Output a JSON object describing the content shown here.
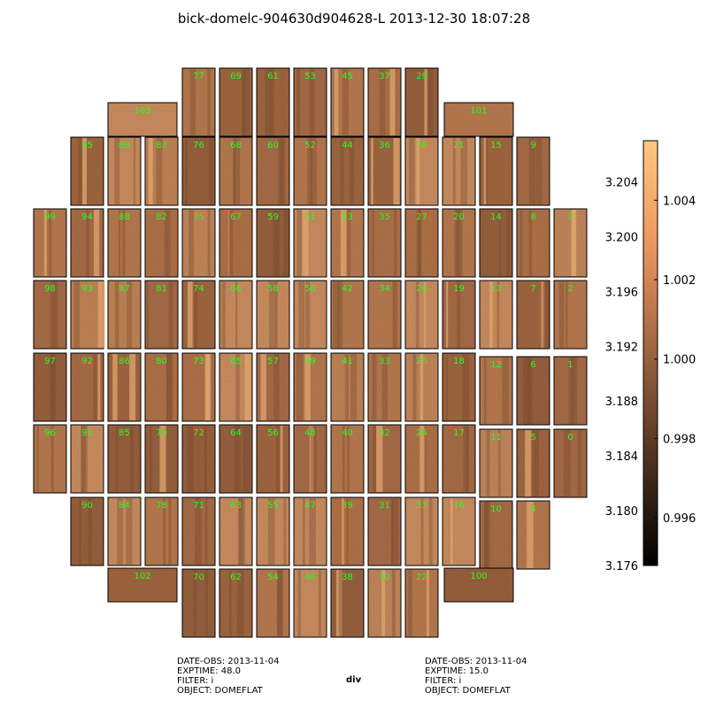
{
  "chart_data": {
    "type": "heatmap",
    "title": "bick-domelc-904630d904628-L 2013-12-30 18:07:28",
    "colormap": "copper",
    "label_color": "#22ff22",
    "chips": [
      {
        "id": "77"
      },
      {
        "id": "69"
      },
      {
        "id": "61"
      },
      {
        "id": "53"
      },
      {
        "id": "45"
      },
      {
        "id": "37"
      },
      {
        "id": "29"
      },
      {
        "id": "103"
      },
      {
        "id": "101"
      },
      {
        "id": "95"
      },
      {
        "id": "89"
      },
      {
        "id": "83"
      },
      {
        "id": "76"
      },
      {
        "id": "68"
      },
      {
        "id": "60"
      },
      {
        "id": "52"
      },
      {
        "id": "44"
      },
      {
        "id": "36"
      },
      {
        "id": "28"
      },
      {
        "id": "21"
      },
      {
        "id": "15"
      },
      {
        "id": "9"
      },
      {
        "id": "99"
      },
      {
        "id": "94"
      },
      {
        "id": "88"
      },
      {
        "id": "82"
      },
      {
        "id": "75"
      },
      {
        "id": "67"
      },
      {
        "id": "59"
      },
      {
        "id": "51"
      },
      {
        "id": "43"
      },
      {
        "id": "35"
      },
      {
        "id": "27"
      },
      {
        "id": "20"
      },
      {
        "id": "14"
      },
      {
        "id": "8"
      },
      {
        "id": "3"
      },
      {
        "id": "98"
      },
      {
        "id": "93"
      },
      {
        "id": "87"
      },
      {
        "id": "81"
      },
      {
        "id": "74"
      },
      {
        "id": "66"
      },
      {
        "id": "58"
      },
      {
        "id": "50"
      },
      {
        "id": "42"
      },
      {
        "id": "34"
      },
      {
        "id": "26"
      },
      {
        "id": "19"
      },
      {
        "id": "13"
      },
      {
        "id": "7"
      },
      {
        "id": "2"
      },
      {
        "id": "97"
      },
      {
        "id": "92"
      },
      {
        "id": "86"
      },
      {
        "id": "80"
      },
      {
        "id": "73"
      },
      {
        "id": "65"
      },
      {
        "id": "57"
      },
      {
        "id": "49"
      },
      {
        "id": "41"
      },
      {
        "id": "33"
      },
      {
        "id": "25"
      },
      {
        "id": "18"
      },
      {
        "id": "12"
      },
      {
        "id": "6"
      },
      {
        "id": "1"
      },
      {
        "id": "96"
      },
      {
        "id": "91"
      },
      {
        "id": "85"
      },
      {
        "id": "79"
      },
      {
        "id": "72"
      },
      {
        "id": "64"
      },
      {
        "id": "56"
      },
      {
        "id": "48"
      },
      {
        "id": "40"
      },
      {
        "id": "32"
      },
      {
        "id": "24"
      },
      {
        "id": "17"
      },
      {
        "id": "11"
      },
      {
        "id": "5"
      },
      {
        "id": "0"
      },
      {
        "id": "90"
      },
      {
        "id": "84"
      },
      {
        "id": "78"
      },
      {
        "id": "71"
      },
      {
        "id": "63"
      },
      {
        "id": "55"
      },
      {
        "id": "47"
      },
      {
        "id": "39"
      },
      {
        "id": "31"
      },
      {
        "id": "23"
      },
      {
        "id": "16"
      },
      {
        "id": "10"
      },
      {
        "id": "4"
      },
      {
        "id": "102"
      },
      {
        "id": "100"
      },
      {
        "id": "70"
      },
      {
        "id": "62"
      },
      {
        "id": "54"
      },
      {
        "id": "46"
      },
      {
        "id": "38"
      },
      {
        "id": "30"
      },
      {
        "id": "22"
      }
    ],
    "colorbar": {
      "range": [
        0.9948,
        1.0055
      ],
      "ticks": [
        {
          "value": 0.996,
          "label": "0.996"
        },
        {
          "value": 0.998,
          "label": "0.998"
        },
        {
          "value": 1.0,
          "label": "1.000"
        },
        {
          "value": 1.002,
          "label": "1.002"
        },
        {
          "value": 1.004,
          "label": "1.004"
        }
      ],
      "secondary_range": [
        3.176,
        3.207
      ],
      "secondary_ticks": [
        {
          "value": 3.176,
          "label": "3.176"
        },
        {
          "value": 3.18,
          "label": "3.180"
        },
        {
          "value": 3.184,
          "label": "3.184"
        },
        {
          "value": 3.188,
          "label": "3.188"
        },
        {
          "value": 3.192,
          "label": "3.192"
        },
        {
          "value": 3.196,
          "label": "3.196"
        },
        {
          "value": 3.2,
          "label": "3.200"
        },
        {
          "value": 3.204,
          "label": "3.204"
        }
      ]
    }
  },
  "footer": {
    "left": {
      "date_obs": "DATE-OBS: 2013-11-04",
      "exptime": "EXPTIME: 48.0",
      "filter": "FILTER: i",
      "object": "OBJECT: DOMEFLAT"
    },
    "center": "div",
    "right": {
      "date_obs": "DATE-OBS: 2013-11-04",
      "exptime": "EXPTIME: 15.0",
      "filter": "FILTER: i",
      "object": "OBJECT: DOMEFLAT"
    }
  }
}
